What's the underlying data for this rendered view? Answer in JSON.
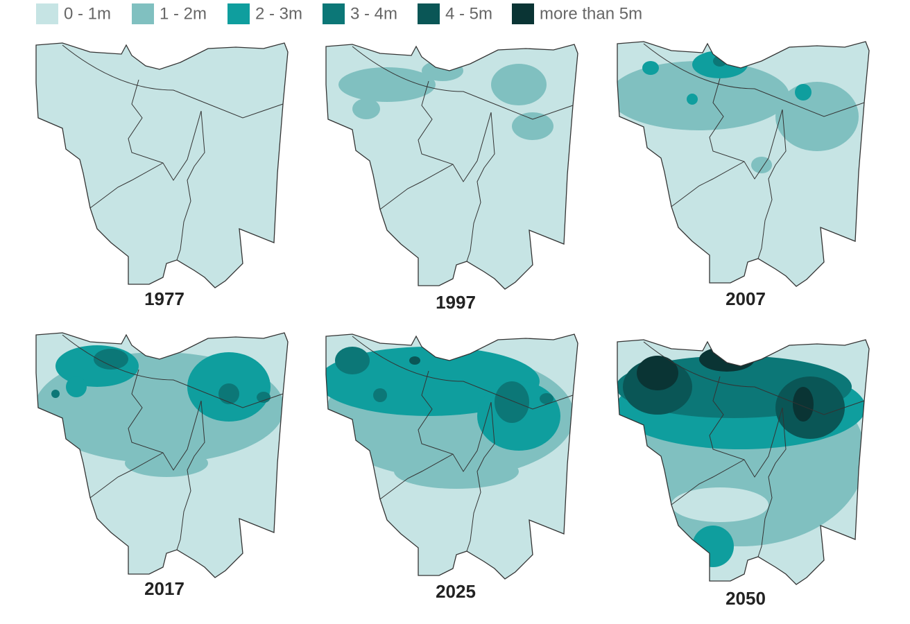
{
  "legend": [
    {
      "label": "0 - 1m",
      "color": "#c6e4e4"
    },
    {
      "label": "1 - 2m",
      "color": "#80c0c0"
    },
    {
      "label": "2 - 3m",
      "color": "#0f9e9e"
    },
    {
      "label": "3 - 4m",
      "color": "#0c7777"
    },
    {
      "label": "4 - 5m",
      "color": "#0a5656"
    },
    {
      "label": "more than 5m",
      "color": "#0a3434"
    }
  ],
  "maps": [
    {
      "year": "1977"
    },
    {
      "year": "1997"
    },
    {
      "year": "2007"
    },
    {
      "year": "2017"
    },
    {
      "year": "2025"
    },
    {
      "year": "2050"
    }
  ]
}
